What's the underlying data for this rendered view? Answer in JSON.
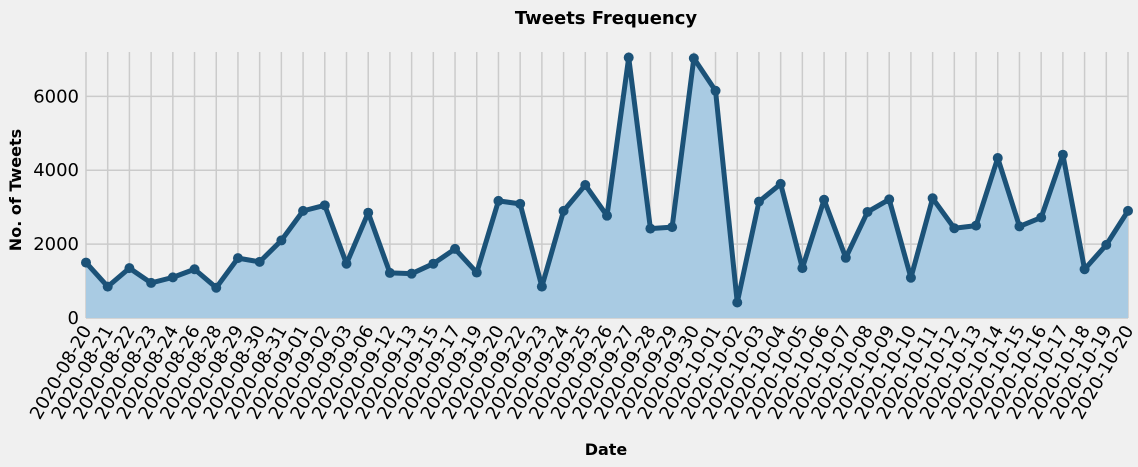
{
  "chart_data": {
    "type": "line",
    "title": "Tweets Frequency",
    "xlabel": "Date",
    "ylabel": "No. of Tweets",
    "ylim": [
      0,
      7200
    ],
    "yticks": [
      0,
      2000,
      4000,
      6000
    ],
    "grid": true,
    "area_fill": true,
    "colors": {
      "line": "#1b5278",
      "fill": "#a9cbe3",
      "grid": "#cbcbcb",
      "background": "#f0f0f0"
    },
    "categories": [
      "2020-08-20",
      "2020-08-21",
      "2020-08-22",
      "2020-08-23",
      "2020-08-24",
      "2020-08-26",
      "2020-08-28",
      "2020-08-29",
      "2020-08-30",
      "2020-08-31",
      "2020-09-01",
      "2020-09-02",
      "2020-09-03",
      "2020-09-06",
      "2020-09-12",
      "2020-09-13",
      "2020-09-15",
      "2020-09-17",
      "2020-09-19",
      "2020-09-20",
      "2020-09-22",
      "2020-09-23",
      "2020-09-24",
      "2020-09-25",
      "2020-09-26",
      "2020-09-27",
      "2020-09-28",
      "2020-09-29",
      "2020-09-30",
      "2020-10-01",
      "2020-10-02",
      "2020-10-03",
      "2020-10-04",
      "2020-10-05",
      "2020-10-06",
      "2020-10-07",
      "2020-10-08",
      "2020-10-09",
      "2020-10-10",
      "2020-10-11",
      "2020-10-12",
      "2020-10-13",
      "2020-10-14",
      "2020-10-15",
      "2020-10-16",
      "2020-10-17",
      "2020-10-18",
      "2020-10-19",
      "2020-10-20"
    ],
    "values": [
      1500,
      850,
      1350,
      950,
      1100,
      1320,
      820,
      1620,
      1520,
      2100,
      2900,
      3050,
      1470,
      2850,
      1220,
      1200,
      1470,
      1870,
      1230,
      3170,
      3090,
      850,
      2900,
      3600,
      2770,
      7050,
      2420,
      2460,
      7030,
      6150,
      420,
      3150,
      3630,
      1350,
      3200,
      1630,
      2870,
      3210,
      1090,
      3240,
      2430,
      2500,
      4330,
      2480,
      2720,
      4420,
      1320,
      1980,
      2900
    ]
  }
}
